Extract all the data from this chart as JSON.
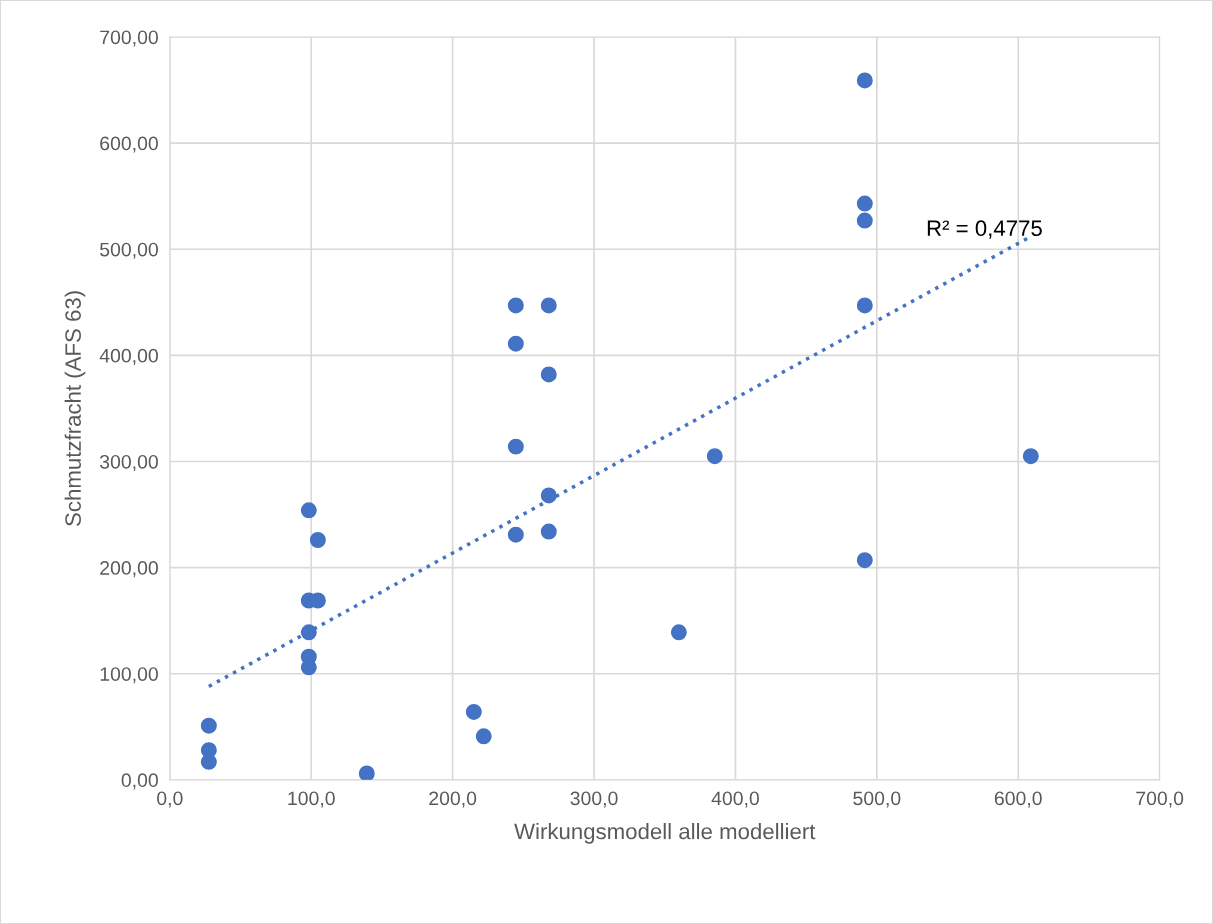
{
  "chart_data": {
    "type": "scatter",
    "xlabel": "Wirkungsmodell alle modelliert",
    "ylabel": "Schmutzfracht (AFS 63)",
    "xlim": [
      0,
      700
    ],
    "ylim": [
      0,
      700
    ],
    "xticks": [
      {
        "value": 0,
        "label": "0,0"
      },
      {
        "value": 100,
        "label": "100,0"
      },
      {
        "value": 200,
        "label": "200,0"
      },
      {
        "value": 300,
        "label": "300,0"
      },
      {
        "value": 400,
        "label": "400,0"
      },
      {
        "value": 500,
        "label": "500,0"
      },
      {
        "value": 600,
        "label": "600,0"
      },
      {
        "value": 700,
        "label": "700,0"
      }
    ],
    "yticks": [
      {
        "value": 0,
        "label": "0,00"
      },
      {
        "value": 100,
        "label": "100,00"
      },
      {
        "value": 200,
        "label": "200,00"
      },
      {
        "value": 300,
        "label": "300,00"
      },
      {
        "value": 400,
        "label": "400,00"
      },
      {
        "value": 500,
        "label": "500,00"
      },
      {
        "value": 600,
        "label": "600,00"
      },
      {
        "value": 700,
        "label": "700,00"
      }
    ],
    "grid": true,
    "marker": "circle",
    "series": [
      {
        "color": "#4472c4",
        "x": [
          27.6,
          27.6,
          27.6,
          139.3,
          98.3,
          104.7,
          98.3,
          104.7,
          98.3,
          98.3,
          98.3,
          215,
          222,
          244.7,
          244.7,
          244.7,
          244.7,
          268,
          268,
          268,
          268,
          360,
          385.4,
          491.5,
          491.5,
          491.5,
          491.5,
          491.5,
          608.9
        ],
        "values": [
          51,
          28,
          17,
          6,
          254,
          226,
          169,
          169,
          139,
          116,
          106,
          64,
          41,
          447,
          411,
          314,
          231,
          447,
          382,
          268,
          234,
          139,
          305,
          659,
          543,
          527,
          447,
          207,
          305
        ]
      },
      {
        "type": "line",
        "line_style": "dotted",
        "marker": "none",
        "color": "#4472c4",
        "x": [
          27.6,
          608.9
        ],
        "values": [
          88,
          512
        ]
      }
    ],
    "annotations": [
      "R² = 0,4775"
    ]
  }
}
